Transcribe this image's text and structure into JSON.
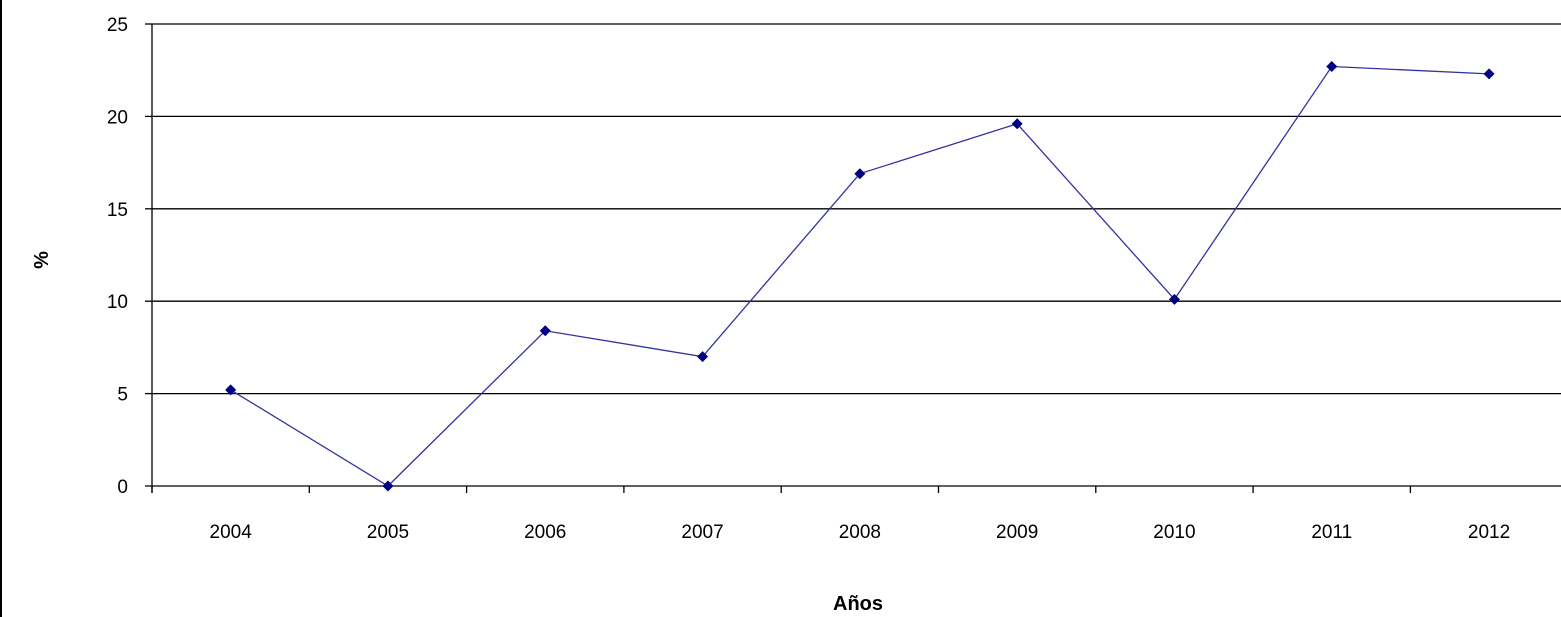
{
  "chart_data": {
    "type": "line",
    "title": "",
    "xlabel": "Años",
    "ylabel": "%",
    "categories": [
      "2004",
      "2005",
      "2006",
      "2007",
      "2008",
      "2009",
      "2010",
      "2011",
      "2012"
    ],
    "series": [
      {
        "values": [
          5.2,
          0.0,
          8.4,
          7.0,
          16.9,
          19.6,
          10.1,
          22.7,
          22.3
        ]
      }
    ],
    "ylim": [
      0,
      25
    ],
    "yticks": [
      "0",
      "5",
      "10",
      "15",
      "20",
      "25"
    ],
    "grid": true,
    "legend": "none",
    "colors": {
      "line": "#3333a0",
      "marker": "#000080",
      "grid": "#000000"
    }
  }
}
